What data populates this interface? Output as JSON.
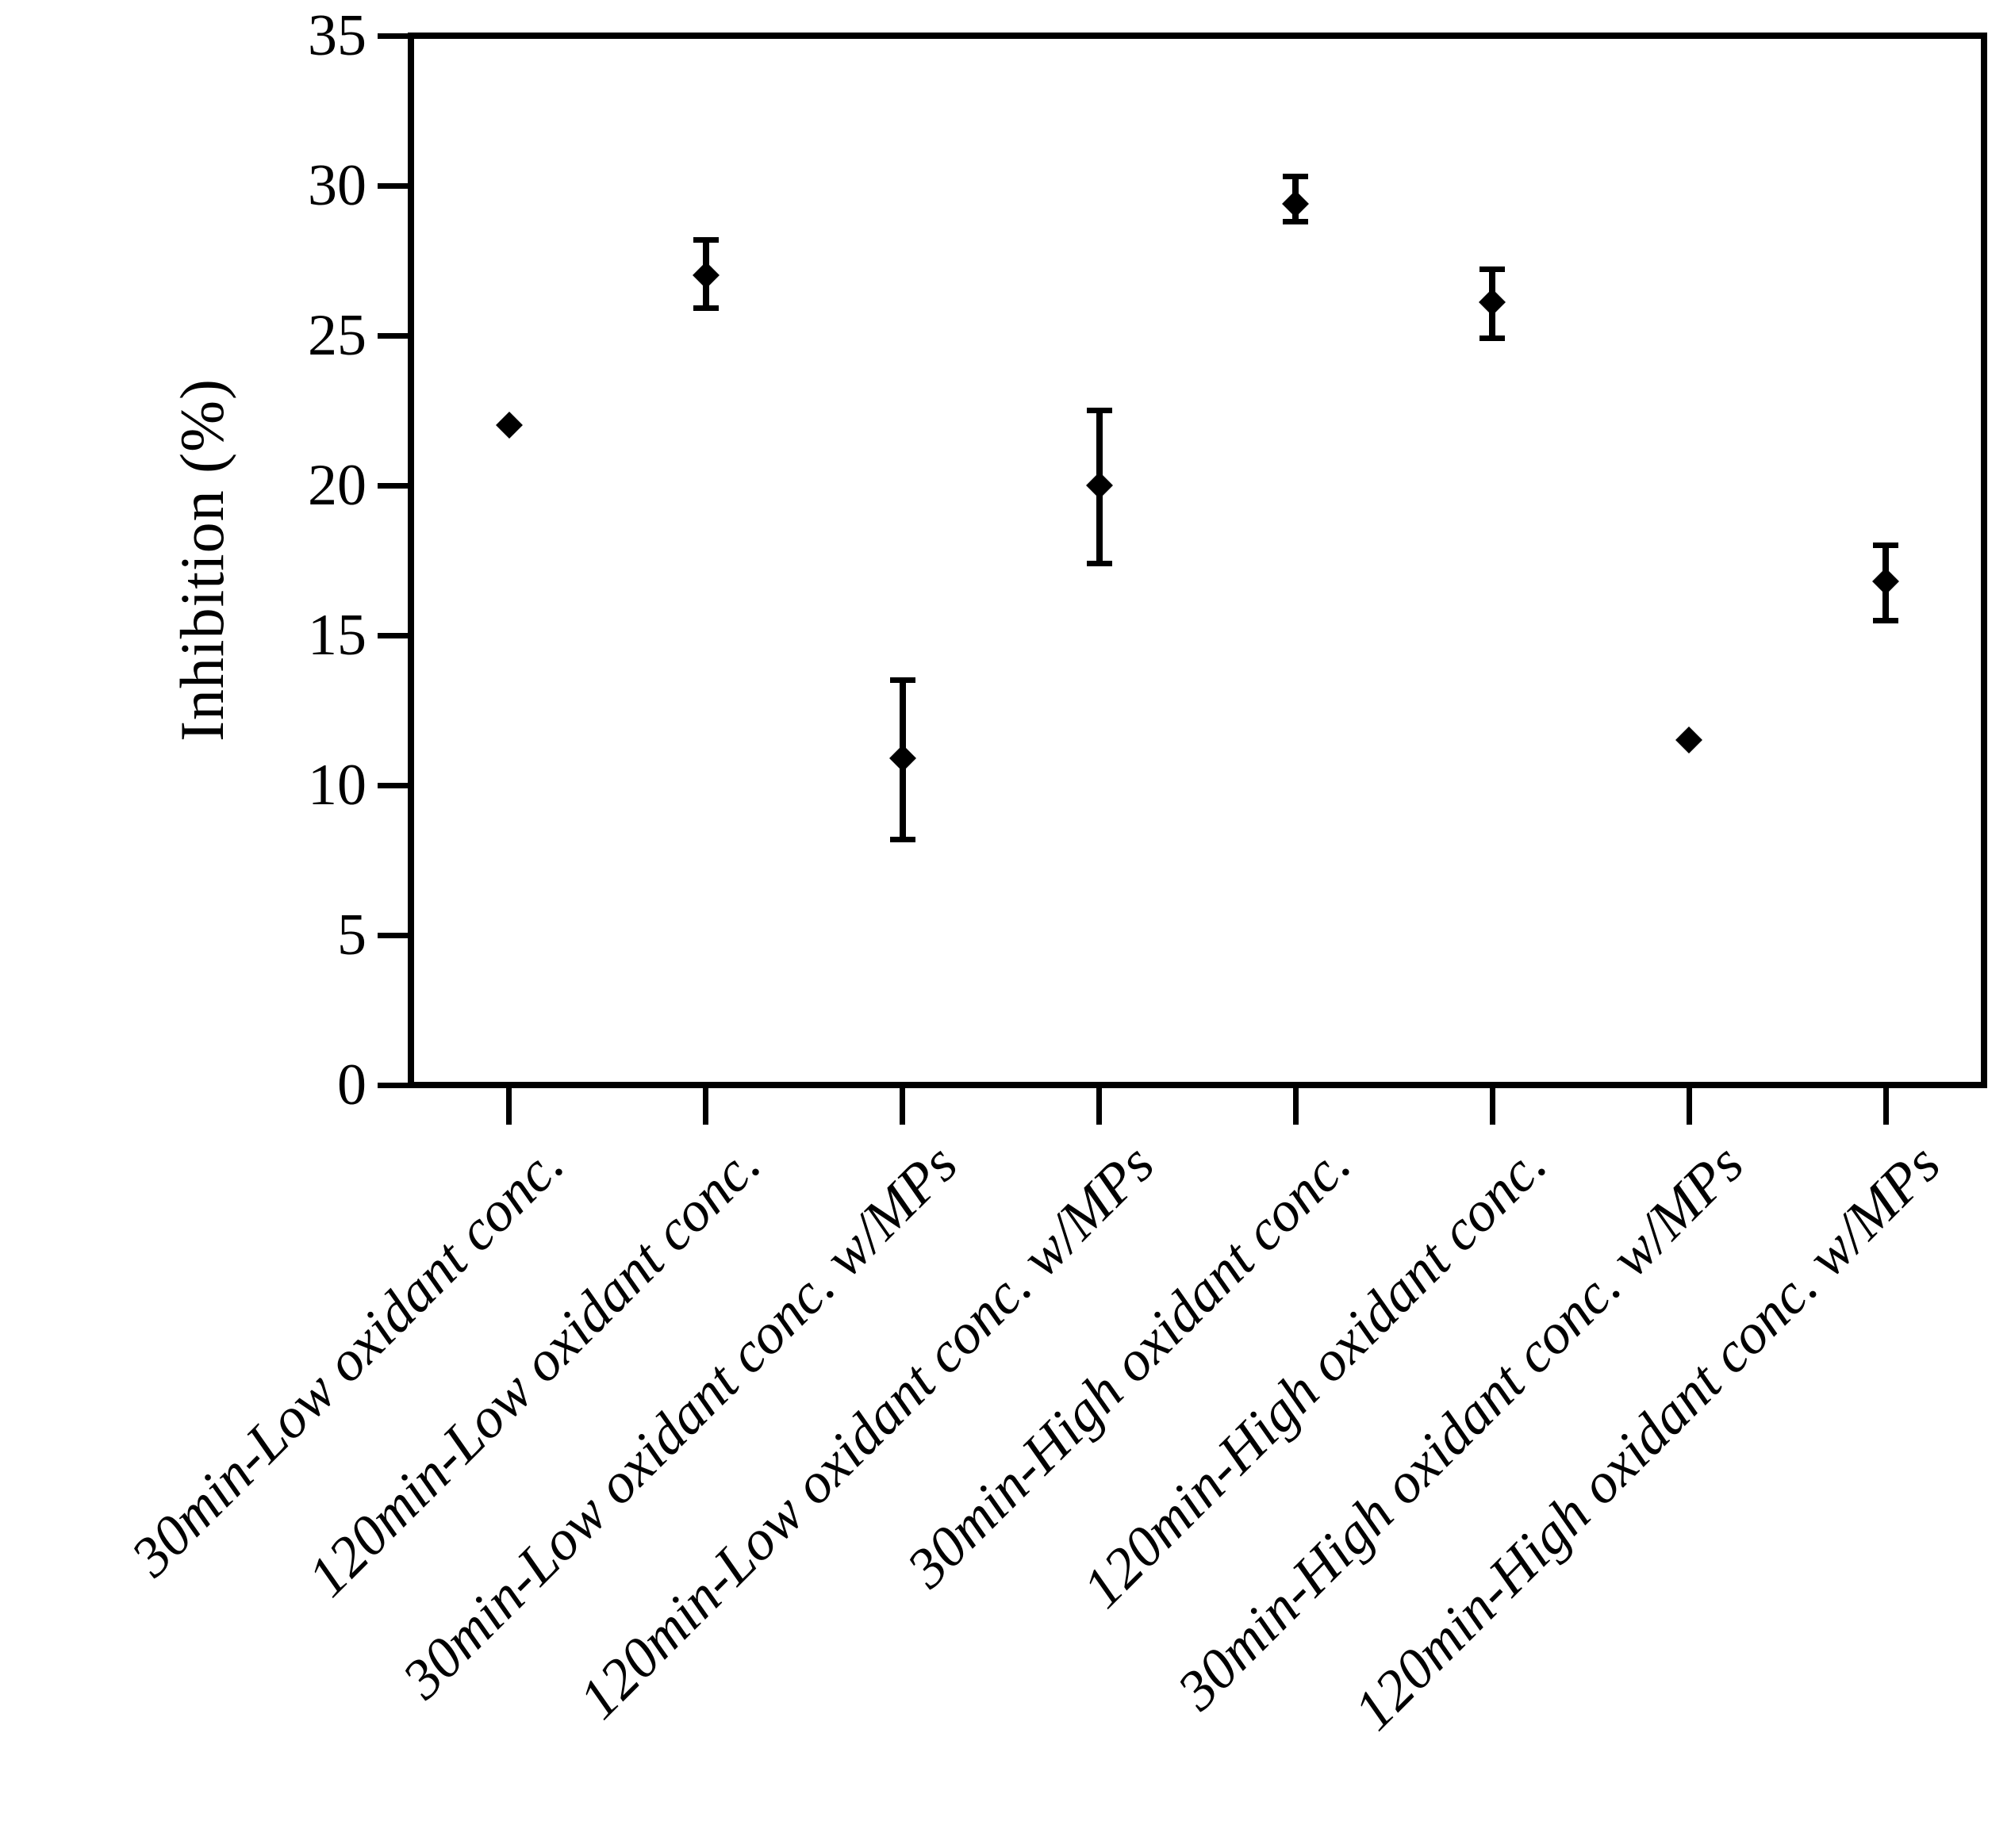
{
  "figure": {
    "background_color": "#ffffff",
    "foreground_color": "#000000"
  },
  "chart_data": {
    "type": "scatter",
    "marker": "diamond",
    "title": "",
    "xlabel": "",
    "ylabel": "Inhibition (%)",
    "ylim": [
      0,
      35
    ],
    "ytick_interval": 5,
    "ytick_labels": [
      "0",
      "5",
      "10",
      "15",
      "20",
      "25",
      "30",
      "35"
    ],
    "grid": false,
    "legend_position": "none",
    "categories": [
      "30min-Low oxidant conc.",
      "120min-Low oxidant conc.",
      "30min-Low oxidant conc. w/MPs",
      "120min-Low oxidant conc. w/MPs",
      "30min-High oxidant conc.",
      "120min-High oxidant conc.",
      "30min-High oxidant conc. w/MPs",
      "120min-High oxidant conc. w/MPs"
    ],
    "series": [
      {
        "name": "Inhibition (%)",
        "values": [
          22.0,
          27.0,
          10.9,
          20.0,
          29.4,
          26.1,
          11.5,
          16.8
        ],
        "error_bar_low": [
          null,
          25.9,
          8.2,
          17.4,
          28.8,
          24.9,
          null,
          15.5
        ],
        "error_bar_high": [
          null,
          28.2,
          13.5,
          22.5,
          30.3,
          27.2,
          null,
          18.0
        ],
        "error_bar_note": "low/high are absolute y-values of error bar caps; null = no error bar shown"
      }
    ]
  }
}
